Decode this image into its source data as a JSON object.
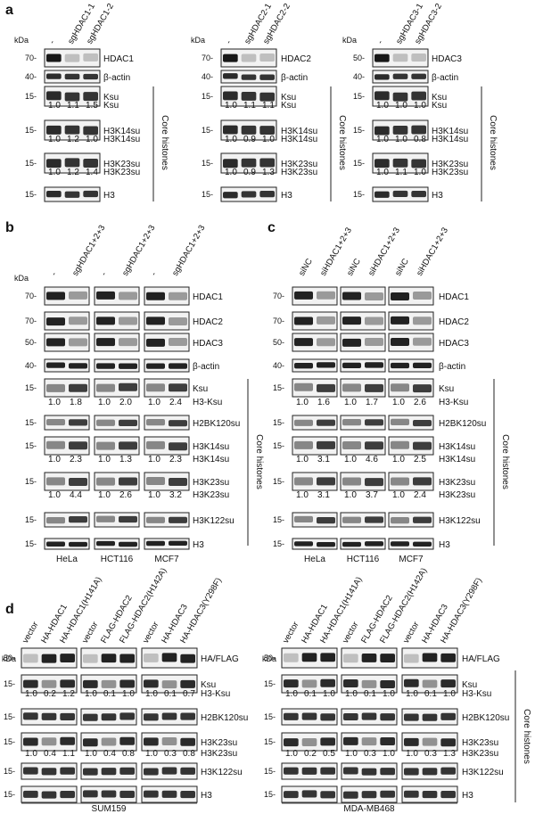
{
  "panel_a": {
    "letter": "a",
    "units": "kDa",
    "sets": [
      {
        "cols": [
          "-",
          "sgHDAC1-1",
          "sgHDAC1-2"
        ],
        "rows": [
          {
            "marker": "70-",
            "label": "HDAC1"
          },
          {
            "marker": "40-",
            "label": "β-actin"
          },
          {
            "marker": "15-",
            "label": "Ksu"
          },
          {
            "marker": "",
            "label": "Ksu",
            "quant": [
              "1.0",
              "1.1",
              "1.5"
            ]
          },
          {
            "marker": "15-",
            "label": "H3K14su"
          },
          {
            "marker": "",
            "label": "H3K14su",
            "quant": [
              "1.0",
              "1.2",
              "1.0"
            ]
          },
          {
            "marker": "15-",
            "label": "H3K23su"
          },
          {
            "marker": "",
            "label": "H3K23su",
            "quant": [
              "1.0",
              "1.2",
              "1.4"
            ]
          },
          {
            "marker": "15-",
            "label": "H3"
          }
        ],
        "bracket": "Core histones"
      },
      {
        "cols": [
          "-",
          "sgHDAC2-1",
          "sgHDAC2-2"
        ],
        "rows": [
          {
            "marker": "70-",
            "label": "HDAC2"
          },
          {
            "marker": "40-",
            "label": "β-actin"
          },
          {
            "marker": "15-",
            "label": "Ksu"
          },
          {
            "marker": "",
            "label": "Ksu",
            "quant": [
              "1.0",
              "1.1",
              "1.1"
            ]
          },
          {
            "marker": "15-",
            "label": "H3K14su"
          },
          {
            "marker": "",
            "label": "H3K14su",
            "quant": [
              "1.0",
              "0.9",
              "1.0"
            ]
          },
          {
            "marker": "15-",
            "label": "H3K23su"
          },
          {
            "marker": "",
            "label": "H3K23su",
            "quant": [
              "1.0",
              "0.9",
              "1.3"
            ]
          },
          {
            "marker": "15-",
            "label": "H3"
          }
        ],
        "bracket": "Core histones"
      },
      {
        "cols": [
          "-",
          "sgHDAC3-1",
          "sgHDAC3-2"
        ],
        "rows": [
          {
            "marker": "50-",
            "label": "HDAC3"
          },
          {
            "marker": "40-",
            "label": "β-actin"
          },
          {
            "marker": "15-",
            "label": "Ksu"
          },
          {
            "marker": "",
            "label": "Ksu",
            "quant": [
              "1.0",
              "1.0",
              "1.0"
            ]
          },
          {
            "marker": "15-",
            "label": "H3K14su"
          },
          {
            "marker": "",
            "label": "H3K14su",
            "quant": [
              "1.0",
              "1.0",
              "0.8"
            ]
          },
          {
            "marker": "15-",
            "label": "H3K23su"
          },
          {
            "marker": "",
            "label": "H3K23su",
            "quant": [
              "1.0",
              "1.1",
              "1.0"
            ]
          },
          {
            "marker": "15-",
            "label": "H3"
          }
        ],
        "bracket": "Core histones"
      }
    ]
  },
  "panel_b": {
    "letter": "b",
    "units": "kDa",
    "cols": [
      "-",
      "sgHDAC1+2+3"
    ],
    "cell_lines": [
      "HeLa",
      "HCT116",
      "MCF7"
    ],
    "rows": [
      {
        "marker": "70-",
        "label": "HDAC1"
      },
      {
        "marker": "70-",
        "label": "HDAC2"
      },
      {
        "marker": "50-",
        "label": "HDAC3"
      },
      {
        "marker": "40-",
        "label": "β-actin"
      },
      {
        "marker": "15-",
        "label": "Ksu"
      },
      {
        "marker": "",
        "label": "H3-Ksu",
        "quant": [
          [
            "1.0",
            "1.8"
          ],
          [
            "1.0",
            "2.0"
          ],
          [
            "1.0",
            "2.4"
          ]
        ]
      },
      {
        "marker": "15-",
        "label": "H2BK120su"
      },
      {
        "marker": "15-",
        "label": "H3K14su"
      },
      {
        "marker": "",
        "label": "H3K14su",
        "quant": [
          [
            "1.0",
            "2.3"
          ],
          [
            "1.0",
            "1.3"
          ],
          [
            "1.0",
            "2.3"
          ]
        ]
      },
      {
        "marker": "15-",
        "label": "H3K23su"
      },
      {
        "marker": "",
        "label": "H3K23su",
        "quant": [
          [
            "1.0",
            "4.4"
          ],
          [
            "1.0",
            "2.6"
          ],
          [
            "1.0",
            "3.2"
          ]
        ]
      },
      {
        "marker": "15-",
        "label": "H3K122su"
      },
      {
        "marker": "15-",
        "label": "H3"
      }
    ],
    "bracket": "Core histones"
  },
  "panel_c": {
    "letter": "c",
    "cols": [
      "siNC",
      "siHDAC1+2+3"
    ],
    "cell_lines": [
      "HeLa",
      "HCT116",
      "MCF7"
    ],
    "rows": [
      {
        "marker": "70-",
        "label": "HDAC1"
      },
      {
        "marker": "70-",
        "label": "HDAC2"
      },
      {
        "marker": "50-",
        "label": "HDAC3"
      },
      {
        "marker": "40-",
        "label": "β-actin"
      },
      {
        "marker": "15-",
        "label": "Ksu"
      },
      {
        "marker": "",
        "label": "H3-Ksu",
        "quant": [
          [
            "1.0",
            "1.6"
          ],
          [
            "1.0",
            "1.7"
          ],
          [
            "1.0",
            "2.6"
          ]
        ]
      },
      {
        "marker": "15-",
        "label": "H2BK120su"
      },
      {
        "marker": "15-",
        "label": "H3K14su"
      },
      {
        "marker": "",
        "label": "H3K14su",
        "quant": [
          [
            "1.0",
            "3.1"
          ],
          [
            "1.0",
            "4.6"
          ],
          [
            "1.0",
            "2.5"
          ]
        ]
      },
      {
        "marker": "15-",
        "label": "H3K23su"
      },
      {
        "marker": "",
        "label": "H3K23su",
        "quant": [
          [
            "1.0",
            "3.1"
          ],
          [
            "1.0",
            "3.7"
          ],
          [
            "1.0",
            "2.4"
          ]
        ]
      },
      {
        "marker": "15-",
        "label": "H3K122su"
      },
      {
        "marker": "15-",
        "label": "H3"
      }
    ],
    "bracket": "Core histones"
  },
  "panel_d": {
    "letter": "d",
    "units": "kDa",
    "groups": [
      {
        "cell_line": "SUM159",
        "sets": [
          [
            "vector",
            "HA-HDAC1",
            "HA-HDAC1(H141A)"
          ],
          [
            "vector",
            "FLAG-HDAC2",
            "FLAG-HDAC2(H142A)"
          ],
          [
            "vector",
            "HA-HDAC3",
            "HA-HDAC3(Y298F)"
          ]
        ],
        "quant_h3ksu": [
          [
            "1.0",
            "0.2",
            "1.2"
          ],
          [
            "1.0",
            "0.1",
            "1.0"
          ],
          [
            "1.0",
            "0.1",
            "0.7"
          ]
        ],
        "quant_h3k23su": [
          [
            "1.0",
            "0.4",
            "1.1"
          ],
          [
            "1.0",
            "0.4",
            "0.8"
          ],
          [
            "1.0",
            "0.3",
            "0.8"
          ]
        ]
      },
      {
        "cell_line": "MDA-MB468",
        "sets": [
          [
            "vector",
            "HA-HDAC1",
            "HA-HDAC1(H141A)"
          ],
          [
            "vector",
            "FLAG-HDAC2",
            "FLAG-HDAC2(H142A)"
          ],
          [
            "vector",
            "HA-HDAC3",
            "HA-HDAC3(Y298F)"
          ]
        ],
        "quant_h3ksu": [
          [
            "1.0",
            "0.1",
            "1.0"
          ],
          [
            "1.0",
            "0.1",
            "1.0"
          ],
          [
            "1.0",
            "0.1",
            "1.0"
          ]
        ],
        "quant_h3k23su": [
          [
            "1.0",
            "0.2",
            "0.5"
          ],
          [
            "1.0",
            "0.3",
            "1.0"
          ],
          [
            "1.0",
            "0.3",
            "1.3"
          ]
        ]
      }
    ],
    "rows": [
      {
        "marker": "50-",
        "label": "HA/FLAG"
      },
      {
        "marker": "15-",
        "label": "Ksu"
      },
      {
        "marker": "",
        "label": "H3-Ksu"
      },
      {
        "marker": "15-",
        "label": "H2BK120su"
      },
      {
        "marker": "15-",
        "label": "H3K23su"
      },
      {
        "marker": "",
        "label": "H3K23su"
      },
      {
        "marker": "15-",
        "label": "H3K122su"
      },
      {
        "marker": "15-",
        "label": "H3"
      }
    ],
    "bracket": "Core histones"
  }
}
